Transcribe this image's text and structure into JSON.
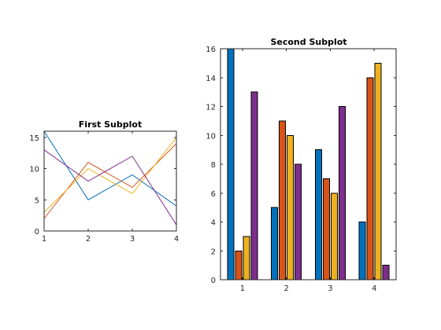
{
  "chart_data": [
    {
      "type": "line",
      "title": "First Subplot",
      "xlabel": "",
      "ylabel": "",
      "x": [
        1,
        2,
        3,
        4
      ],
      "xlim": [
        1,
        4
      ],
      "ylim": [
        0,
        16
      ],
      "xticks": [
        1,
        2,
        3,
        4
      ],
      "yticks": [
        0,
        5,
        10,
        15
      ],
      "grid": false,
      "series": [
        {
          "values": [
            16,
            5,
            9,
            4
          ],
          "color": "#0072BD"
        },
        {
          "values": [
            2,
            11,
            7,
            14
          ],
          "color": "#D95319"
        },
        {
          "values": [
            3,
            10,
            6,
            15
          ],
          "color": "#EDB120"
        },
        {
          "values": [
            13,
            8,
            12,
            1
          ],
          "color": "#7E2F8E"
        }
      ]
    },
    {
      "type": "bar",
      "title": "Second Subplot",
      "xlabel": "",
      "ylabel": "",
      "categories": [
        "1",
        "2",
        "3",
        "4"
      ],
      "ylim": [
        0,
        16
      ],
      "yticks": [
        0,
        2,
        4,
        6,
        8,
        10,
        12,
        14,
        16
      ],
      "grid": false,
      "series": [
        {
          "values": [
            16,
            5,
            9,
            4
          ],
          "color": "#0072BD"
        },
        {
          "values": [
            2,
            11,
            7,
            14
          ],
          "color": "#D95319"
        },
        {
          "values": [
            3,
            10,
            6,
            15
          ],
          "color": "#EDB120"
        },
        {
          "values": [
            13,
            8,
            12,
            1
          ],
          "color": "#7E2F8E"
        }
      ]
    }
  ]
}
